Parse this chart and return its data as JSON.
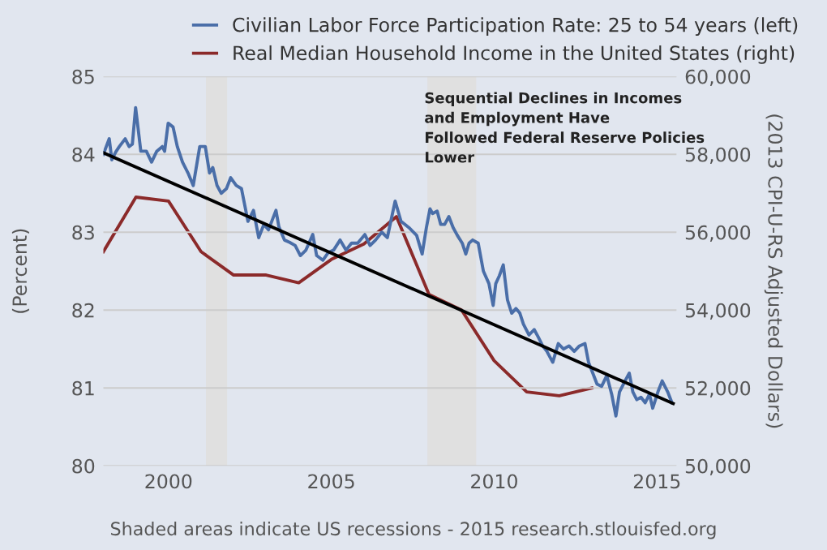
{
  "chart_data": {
    "type": "line",
    "series": [
      {
        "name": "Civilian Labor Force Participation Rate: 25 to 54 years (left)",
        "color": "#4a6ea8",
        "axis": "y",
        "x": [
          1998.0,
          1998.18,
          1998.26,
          1998.38,
          1998.49,
          1998.67,
          1998.79,
          1998.89,
          1998.99,
          1999.15,
          1999.32,
          1999.48,
          1999.64,
          1999.81,
          1999.88,
          1999.99,
          2000.14,
          2000.27,
          2000.43,
          2000.6,
          2000.76,
          2000.96,
          2001.13,
          2001.26,
          2001.36,
          2001.49,
          2001.62,
          2001.78,
          2001.91,
          2002.08,
          2002.24,
          2002.44,
          2002.61,
          2002.77,
          2002.93,
          2003.07,
          2003.3,
          2003.39,
          2003.56,
          2003.72,
          2003.89,
          2004.05,
          2004.22,
          2004.43,
          2004.55,
          2004.74,
          2004.91,
          2005.07,
          2005.27,
          2005.45,
          2005.62,
          2005.81,
          2006.03,
          2006.19,
          2006.36,
          2006.55,
          2006.72,
          2006.96,
          2007.14,
          2007.38,
          2007.62,
          2007.79,
          2007.92,
          2008.03,
          2008.11,
          2008.25,
          2008.36,
          2008.48,
          2008.61,
          2008.74,
          2008.87,
          2009.02,
          2009.13,
          2009.23,
          2009.34,
          2009.51,
          2009.67,
          2009.84,
          2009.97,
          2010.05,
          2010.16,
          2010.28,
          2010.41,
          2010.54,
          2010.67,
          2010.79,
          2010.9,
          2011.07,
          2011.23,
          2011.36,
          2011.49,
          2011.62,
          2011.8,
          2011.97,
          2012.13,
          2012.3,
          2012.46,
          2012.62,
          2012.79,
          2012.9,
          2013.03,
          2013.16,
          2013.3,
          2013.46,
          2013.61,
          2013.74,
          2013.85,
          2014.02,
          2014.15,
          2014.26,
          2014.38,
          2014.51,
          2014.64,
          2014.77,
          2014.87,
          2015.03,
          2015.16,
          2015.33,
          2015.46
        ],
        "values": [
          84.0,
          84.2,
          83.93,
          84.03,
          84.1,
          84.2,
          84.1,
          84.13,
          84.6,
          84.04,
          84.04,
          83.9,
          84.04,
          84.1,
          84.04,
          84.4,
          84.35,
          84.1,
          83.9,
          83.76,
          83.6,
          84.1,
          84.1,
          83.76,
          83.83,
          83.6,
          83.5,
          83.56,
          83.7,
          83.6,
          83.56,
          83.14,
          83.28,
          82.93,
          83.1,
          83.03,
          83.28,
          83.07,
          82.9,
          82.87,
          82.83,
          82.7,
          82.77,
          82.97,
          82.7,
          82.64,
          82.74,
          82.77,
          82.9,
          82.77,
          82.86,
          82.86,
          82.97,
          82.83,
          82.9,
          83.0,
          82.93,
          83.4,
          83.14,
          83.06,
          82.96,
          82.72,
          83.06,
          83.3,
          83.24,
          83.27,
          83.1,
          83.1,
          83.2,
          83.06,
          82.96,
          82.86,
          82.72,
          82.86,
          82.9,
          82.86,
          82.5,
          82.34,
          82.06,
          82.34,
          82.44,
          82.58,
          82.13,
          81.96,
          82.02,
          81.96,
          81.82,
          81.68,
          81.75,
          81.65,
          81.54,
          81.47,
          81.33,
          81.57,
          81.5,
          81.54,
          81.47,
          81.54,
          81.57,
          81.33,
          81.19,
          81.05,
          81.02,
          81.16,
          80.92,
          80.64,
          80.95,
          81.09,
          81.19,
          80.95,
          80.85,
          80.88,
          80.81,
          80.92,
          80.74,
          80.95,
          81.09,
          80.95,
          80.81
        ]
      },
      {
        "name": "Real Median Household Income in the United States (right)",
        "color": "#8b2a2a",
        "axis": "y2",
        "x": [
          1998,
          1999,
          2000,
          2001,
          2002,
          2003,
          2004,
          2005,
          2006,
          2007,
          2008,
          2009,
          2010,
          2011,
          2012,
          2013
        ],
        "values": [
          55500,
          56900,
          56800,
          55500,
          54900,
          54900,
          54700,
          55300,
          55700,
          56400,
          54400,
          54000,
          52700,
          51900,
          51800,
          52000
        ]
      },
      {
        "color": "#000000",
        "axis": "y",
        "x": [
          1998.0,
          2015.5
        ],
        "values": [
          84.02,
          80.8
        ]
      }
    ],
    "xlim": [
      1998.0,
      2015.6
    ],
    "xticks": [
      2000,
      2005,
      2010,
      2015
    ],
    "ylim": [
      80,
      85
    ],
    "yticks": [
      80,
      81,
      82,
      83,
      84,
      85
    ],
    "y2lim": [
      50000,
      60000
    ],
    "y2ticks": [
      {
        "value": 50000,
        "label": "50,000"
      },
      {
        "value": 52000,
        "label": "52,000"
      },
      {
        "value": 54000,
        "label": "54,000"
      },
      {
        "value": 56000,
        "label": "56,000"
      },
      {
        "value": 58000,
        "label": "58,000"
      },
      {
        "value": 60000,
        "label": "60,000"
      }
    ],
    "ylabel": "(Percent)",
    "y2label": "(2013 CPI-U-RS Adjusted Dollars)",
    "bands": [
      {
        "axis": "x",
        "from": 2001.15,
        "to": 2001.8,
        "color": "#e0e0e0"
      },
      {
        "axis": "x",
        "from": 2007.95,
        "to": 2009.45,
        "color": "#e0e0e0"
      }
    ],
    "annotations": [
      "Sequential Declines in Incomes\nand Employment Have\nFollowed Federal Reserve Policies\nLower",
      "Shaded areas indicate US recessions - 2015 research.stlouisfed.org"
    ],
    "grid": "y",
    "legend": "top",
    "marker": "none",
    "line_style": "solid"
  }
}
